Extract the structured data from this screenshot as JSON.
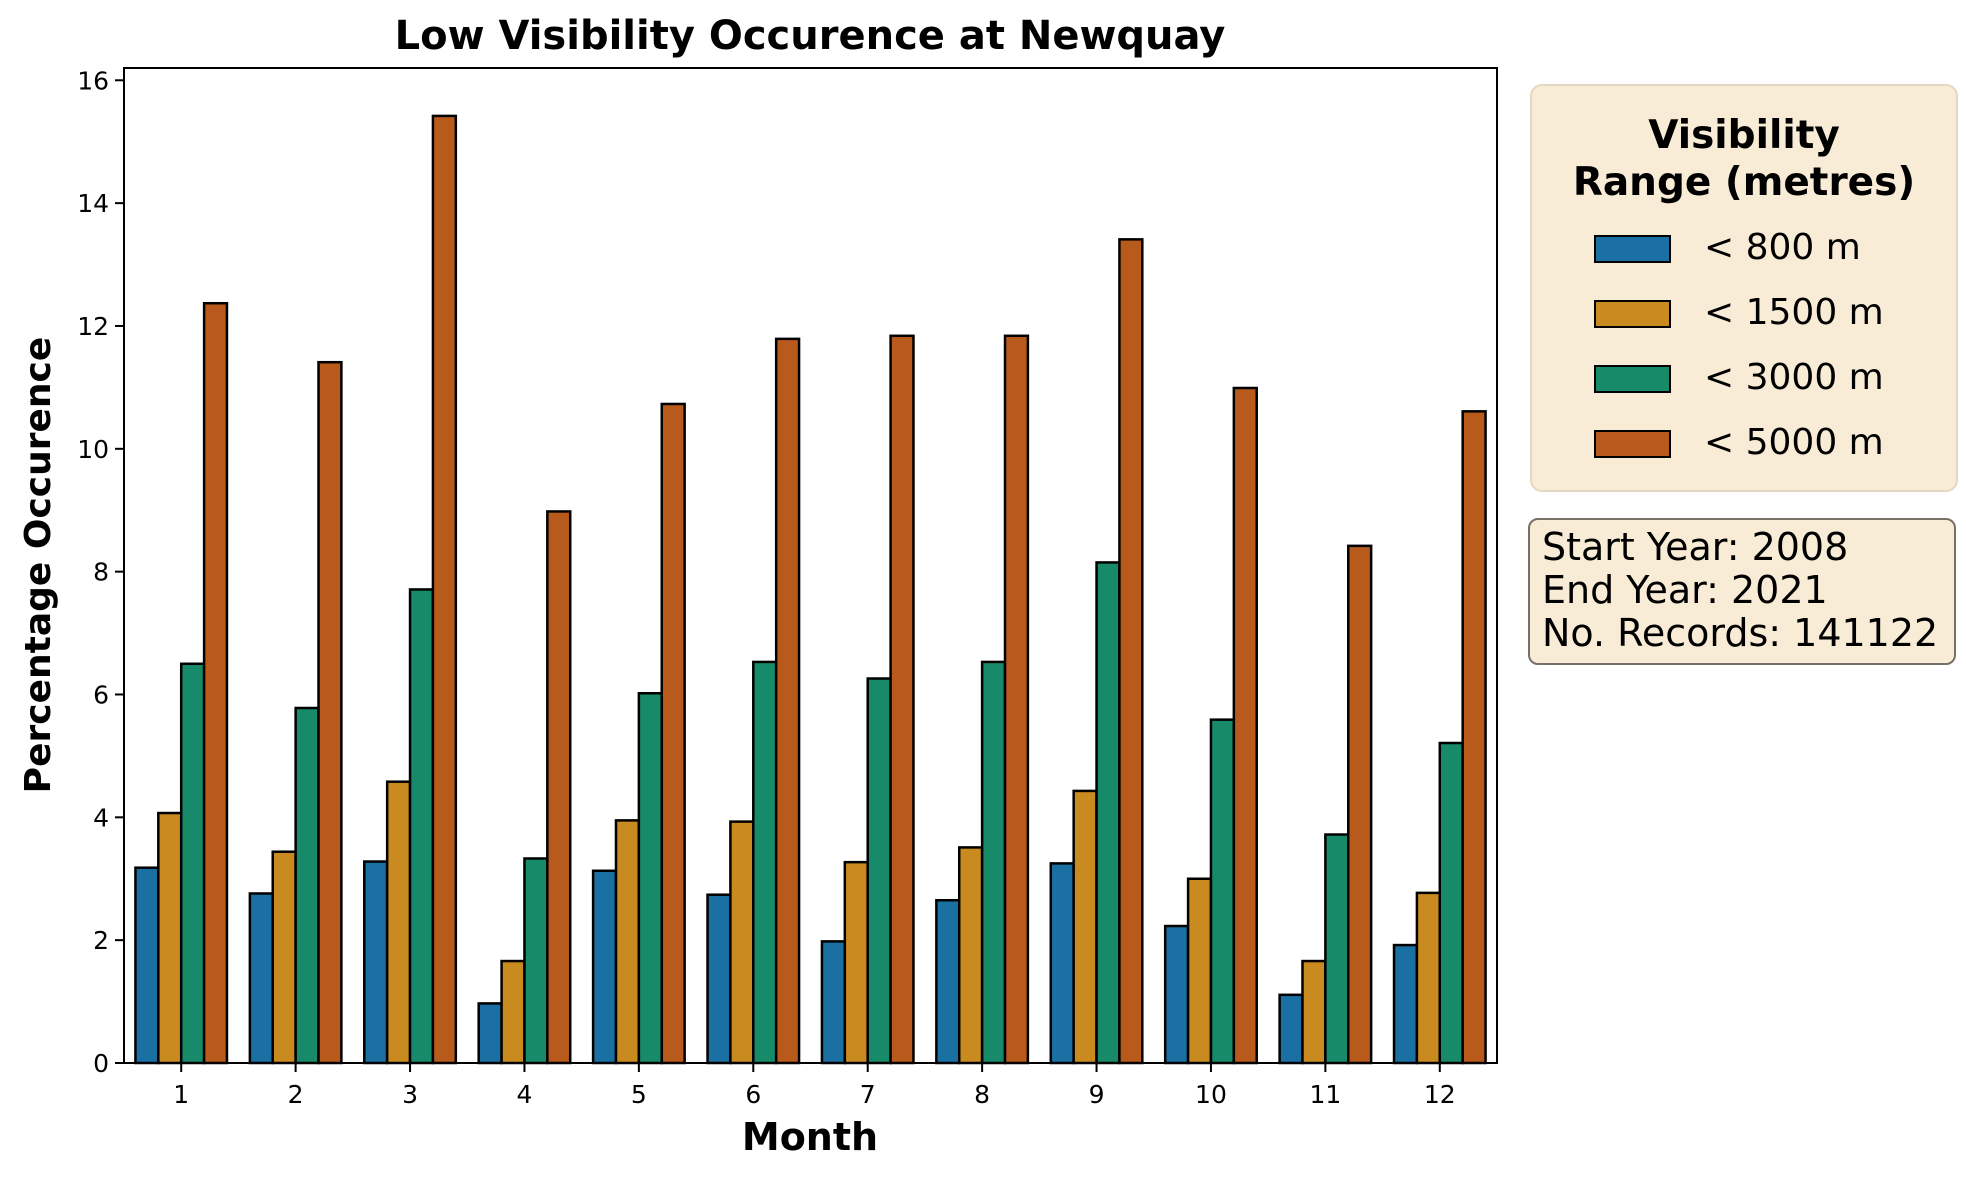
{
  "chart_data": {
    "type": "bar",
    "title": "Low Visibility Occurence at Newquay",
    "xlabel": "Month",
    "ylabel": "Percentage Occurence",
    "categories": [
      "1",
      "2",
      "3",
      "4",
      "5",
      "6",
      "7",
      "8",
      "9",
      "10",
      "11",
      "12"
    ],
    "yticks": [
      "0",
      "2",
      "4",
      "6",
      "8",
      "10",
      "12",
      "14",
      "16"
    ],
    "ylim": [
      0,
      16.2
    ],
    "grid": false,
    "legend_position": "right",
    "series": [
      {
        "name": "< 800 m",
        "color": "#1a6fa3",
        "values": [
          3.18,
          2.76,
          3.28,
          0.97,
          3.13,
          2.74,
          1.98,
          2.65,
          3.25,
          2.23,
          1.11,
          1.92
        ]
      },
      {
        "name": "< 1500 m",
        "color": "#c98a1f",
        "values": [
          4.07,
          3.44,
          4.58,
          1.66,
          3.95,
          3.93,
          3.27,
          3.51,
          4.43,
          3.0,
          1.66,
          2.77
        ]
      },
      {
        "name": "< 3000 m",
        "color": "#178a6a",
        "values": [
          6.5,
          5.78,
          7.71,
          3.33,
          6.02,
          6.53,
          6.26,
          6.53,
          8.15,
          5.59,
          3.72,
          5.21
        ]
      },
      {
        "name": "< 5000 m",
        "color": "#b85a1b",
        "values": [
          12.37,
          11.41,
          15.42,
          8.98,
          10.73,
          11.79,
          11.84,
          11.84,
          13.41,
          10.99,
          8.42,
          10.61
        ]
      }
    ]
  },
  "legend": {
    "title_line1": "Visibility",
    "title_line2": "Range (metres)",
    "items": [
      {
        "label": "< 800 m",
        "color": "#1a6fa3"
      },
      {
        "label": "< 1500 m",
        "color": "#c98a1f"
      },
      {
        "label": "< 3000 m",
        "color": "#178a6a"
      },
      {
        "label": "< 5000 m",
        "color": "#b85a1b"
      }
    ]
  },
  "info": {
    "start_year": "Start Year: 2008",
    "end_year": "End Year: 2021",
    "records": "No. Records: 141122"
  }
}
